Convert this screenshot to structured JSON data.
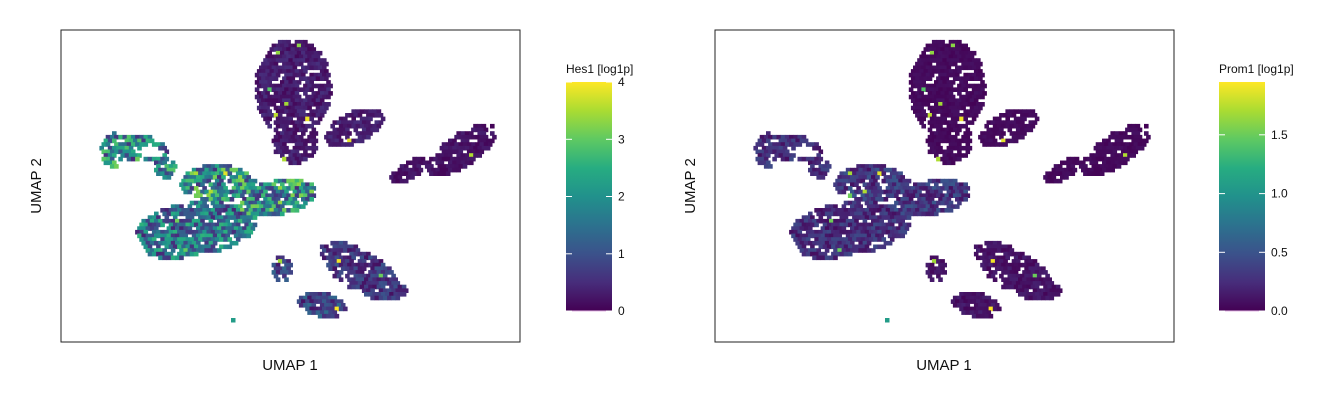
{
  "chart_data": [
    {
      "type": "scatter",
      "kind": "umap-feature-hexbin",
      "xlabel": "UMAP 1",
      "ylabel": "UMAP 2",
      "legend_title": "Hes1 [log1p]",
      "legend_placement": "right",
      "colormap": "viridis",
      "color_range": [
        0,
        4
      ],
      "colorbar_ticks": [
        "0",
        "1",
        "2",
        "3",
        "4"
      ],
      "colorbar_tick_values": [
        0,
        1,
        2,
        3,
        4
      ],
      "grid": false,
      "axis_ticks_shown": false,
      "typical_values": {
        "top_lobe": 0.3,
        "right_arm": 0.2,
        "upper_left_loop": 1.8,
        "center": 1.9,
        "left_blob": 1.5,
        "bottom_right": 0.6,
        "bottom_center": 0.8,
        "max": 4.0
      }
    },
    {
      "type": "scatter",
      "kind": "umap-feature-hexbin",
      "xlabel": "UMAP 1",
      "ylabel": "UMAP 2",
      "legend_title": "Prom1 [log1p]",
      "legend_placement": "right",
      "colormap": "viridis",
      "color_range": [
        0,
        1.95
      ],
      "colorbar_ticks": [
        "0.0",
        "0.5",
        "1.0",
        "1.5"
      ],
      "colorbar_tick_values": [
        0,
        0.5,
        1.0,
        1.5
      ],
      "grid": false,
      "axis_ticks_shown": false,
      "typical_values": {
        "top_lobe": 0.05,
        "right_arm": 0.05,
        "upper_left_loop": 0.25,
        "center": 0.3,
        "left_blob": 0.25,
        "bottom_right": 0.1,
        "bottom_center": 0.1,
        "max": 1.95
      }
    }
  ]
}
